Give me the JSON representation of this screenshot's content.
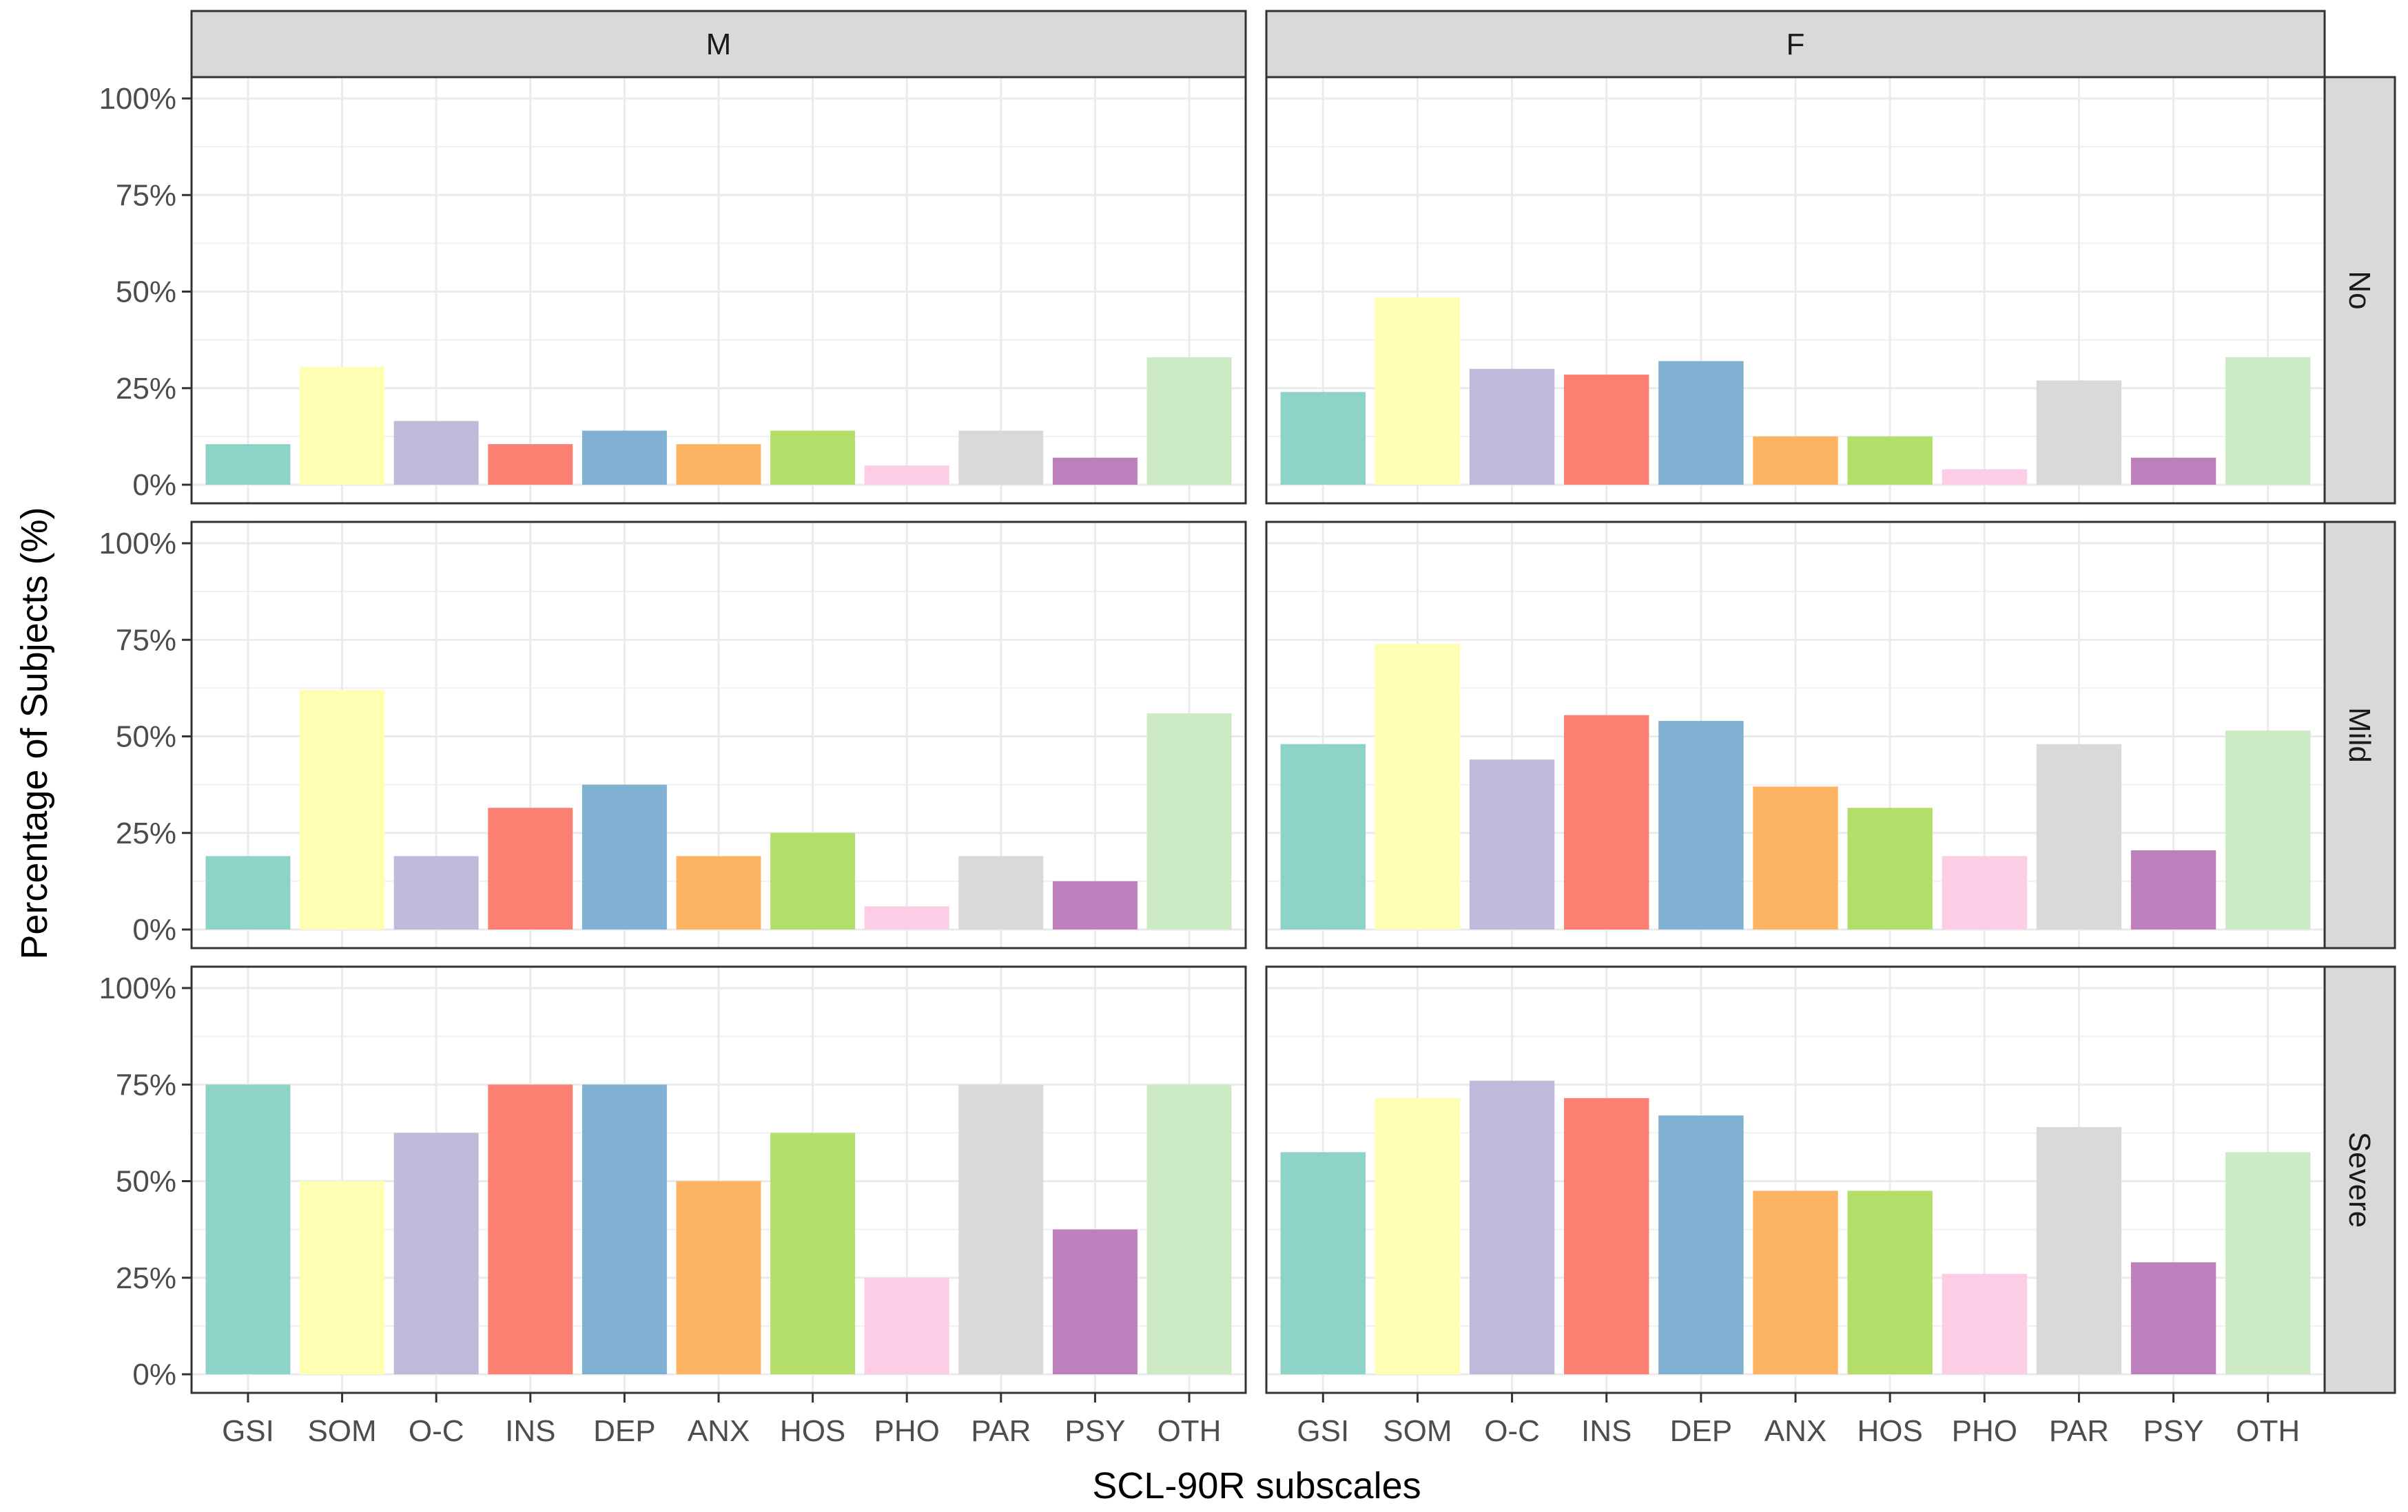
{
  "chart_data": {
    "type": "bar",
    "layout": "facet_grid",
    "xlabel": "SCL-90R subscales",
    "ylabel": "Percentage of Subjects (%)",
    "ylim": [
      0,
      100
    ],
    "y_ticks": [
      "0%",
      "25%",
      "50%",
      "75%",
      "100%"
    ],
    "y_tick_values": [
      0,
      25,
      50,
      75,
      100
    ],
    "grid": true,
    "categories": [
      "GSI",
      "SOM",
      "O-C",
      "INS",
      "DEP",
      "ANX",
      "HOS",
      "PHO",
      "PAR",
      "PSY",
      "OTH"
    ],
    "colors": [
      "#8DD3C7",
      "#FFFFB3",
      "#BEBADA",
      "#FB8072",
      "#80B1D3",
      "#FDB462",
      "#B3DE69",
      "#FCCDE5",
      "#D9D9D9",
      "#BC80BD",
      "#CCEBC5"
    ],
    "col_facets": [
      "M",
      "F"
    ],
    "row_facets": [
      "No",
      "Mild",
      "Severe"
    ],
    "panels": [
      {
        "sex": "M",
        "severity": "No",
        "values": [
          10.5,
          30.5,
          16.5,
          10.5,
          14,
          10.5,
          14,
          5,
          14,
          7,
          33
        ]
      },
      {
        "sex": "F",
        "severity": "No",
        "values": [
          24,
          48.5,
          30,
          28.5,
          32,
          12.5,
          12.5,
          4,
          27,
          7,
          33
        ]
      },
      {
        "sex": "M",
        "severity": "Mild",
        "values": [
          19,
          62,
          19,
          31.5,
          37.5,
          19,
          25,
          6,
          19,
          12.5,
          56
        ]
      },
      {
        "sex": "F",
        "severity": "Mild",
        "values": [
          48,
          74,
          44,
          55.5,
          54,
          37,
          31.5,
          19,
          48,
          20.5,
          51.5
        ]
      },
      {
        "sex": "M",
        "severity": "Severe",
        "values": [
          75,
          50,
          62.5,
          75,
          75,
          50,
          62.5,
          25,
          75,
          37.5,
          75
        ]
      },
      {
        "sex": "F",
        "severity": "Severe",
        "values": [
          57.5,
          71.5,
          76,
          71.5,
          67,
          47.5,
          47.5,
          26,
          64,
          29,
          57.5
        ]
      }
    ]
  }
}
